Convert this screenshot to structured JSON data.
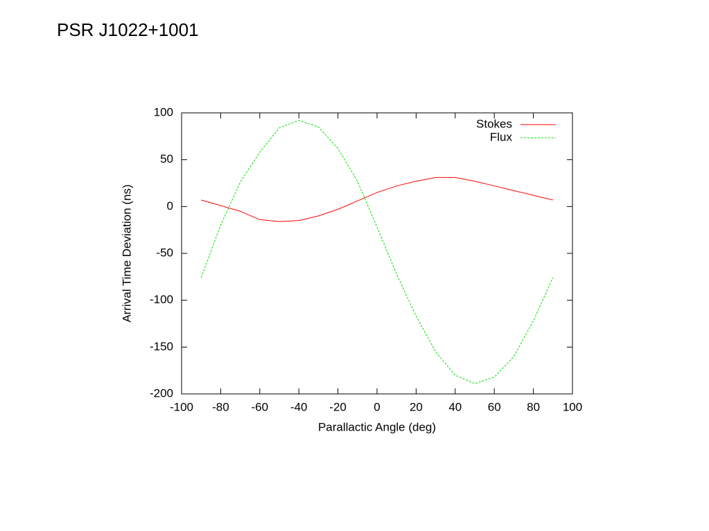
{
  "chart_data": {
    "type": "line",
    "title": "PSR J1022+1001",
    "x_label": "Parallactic Angle (deg)",
    "y_label": "Arrival Time Deviation (ns)",
    "x": [
      -90,
      -80,
      -70,
      -60,
      -50,
      -40,
      -30,
      -20,
      -10,
      0,
      10,
      20,
      30,
      40,
      50,
      60,
      70,
      80,
      90
    ],
    "series": [
      {
        "name": "Stokes",
        "color": "#ff0000",
        "dashed": false,
        "values": [
          7,
          1,
          -5,
          -14,
          -16,
          -15,
          -10,
          -3,
          6,
          15,
          22,
          27,
          31,
          31,
          27,
          22,
          17,
          12,
          7
        ]
      },
      {
        "name": "Flux",
        "color": "#00e000",
        "dashed": true,
        "values": [
          -76,
          -20,
          26,
          58,
          84,
          92,
          85,
          62,
          27,
          -22,
          -72,
          -117,
          -155,
          -180,
          -189,
          -182,
          -160,
          -122,
          -76
        ]
      }
    ],
    "xlim": [
      -100,
      100
    ],
    "ylim": [
      -200,
      100
    ],
    "xticks": [
      -100,
      -80,
      -60,
      -40,
      -20,
      0,
      20,
      40,
      60,
      80,
      100
    ],
    "yticks": [
      -200,
      -150,
      -100,
      -50,
      0,
      50,
      100
    ],
    "legend": "top-right"
  }
}
